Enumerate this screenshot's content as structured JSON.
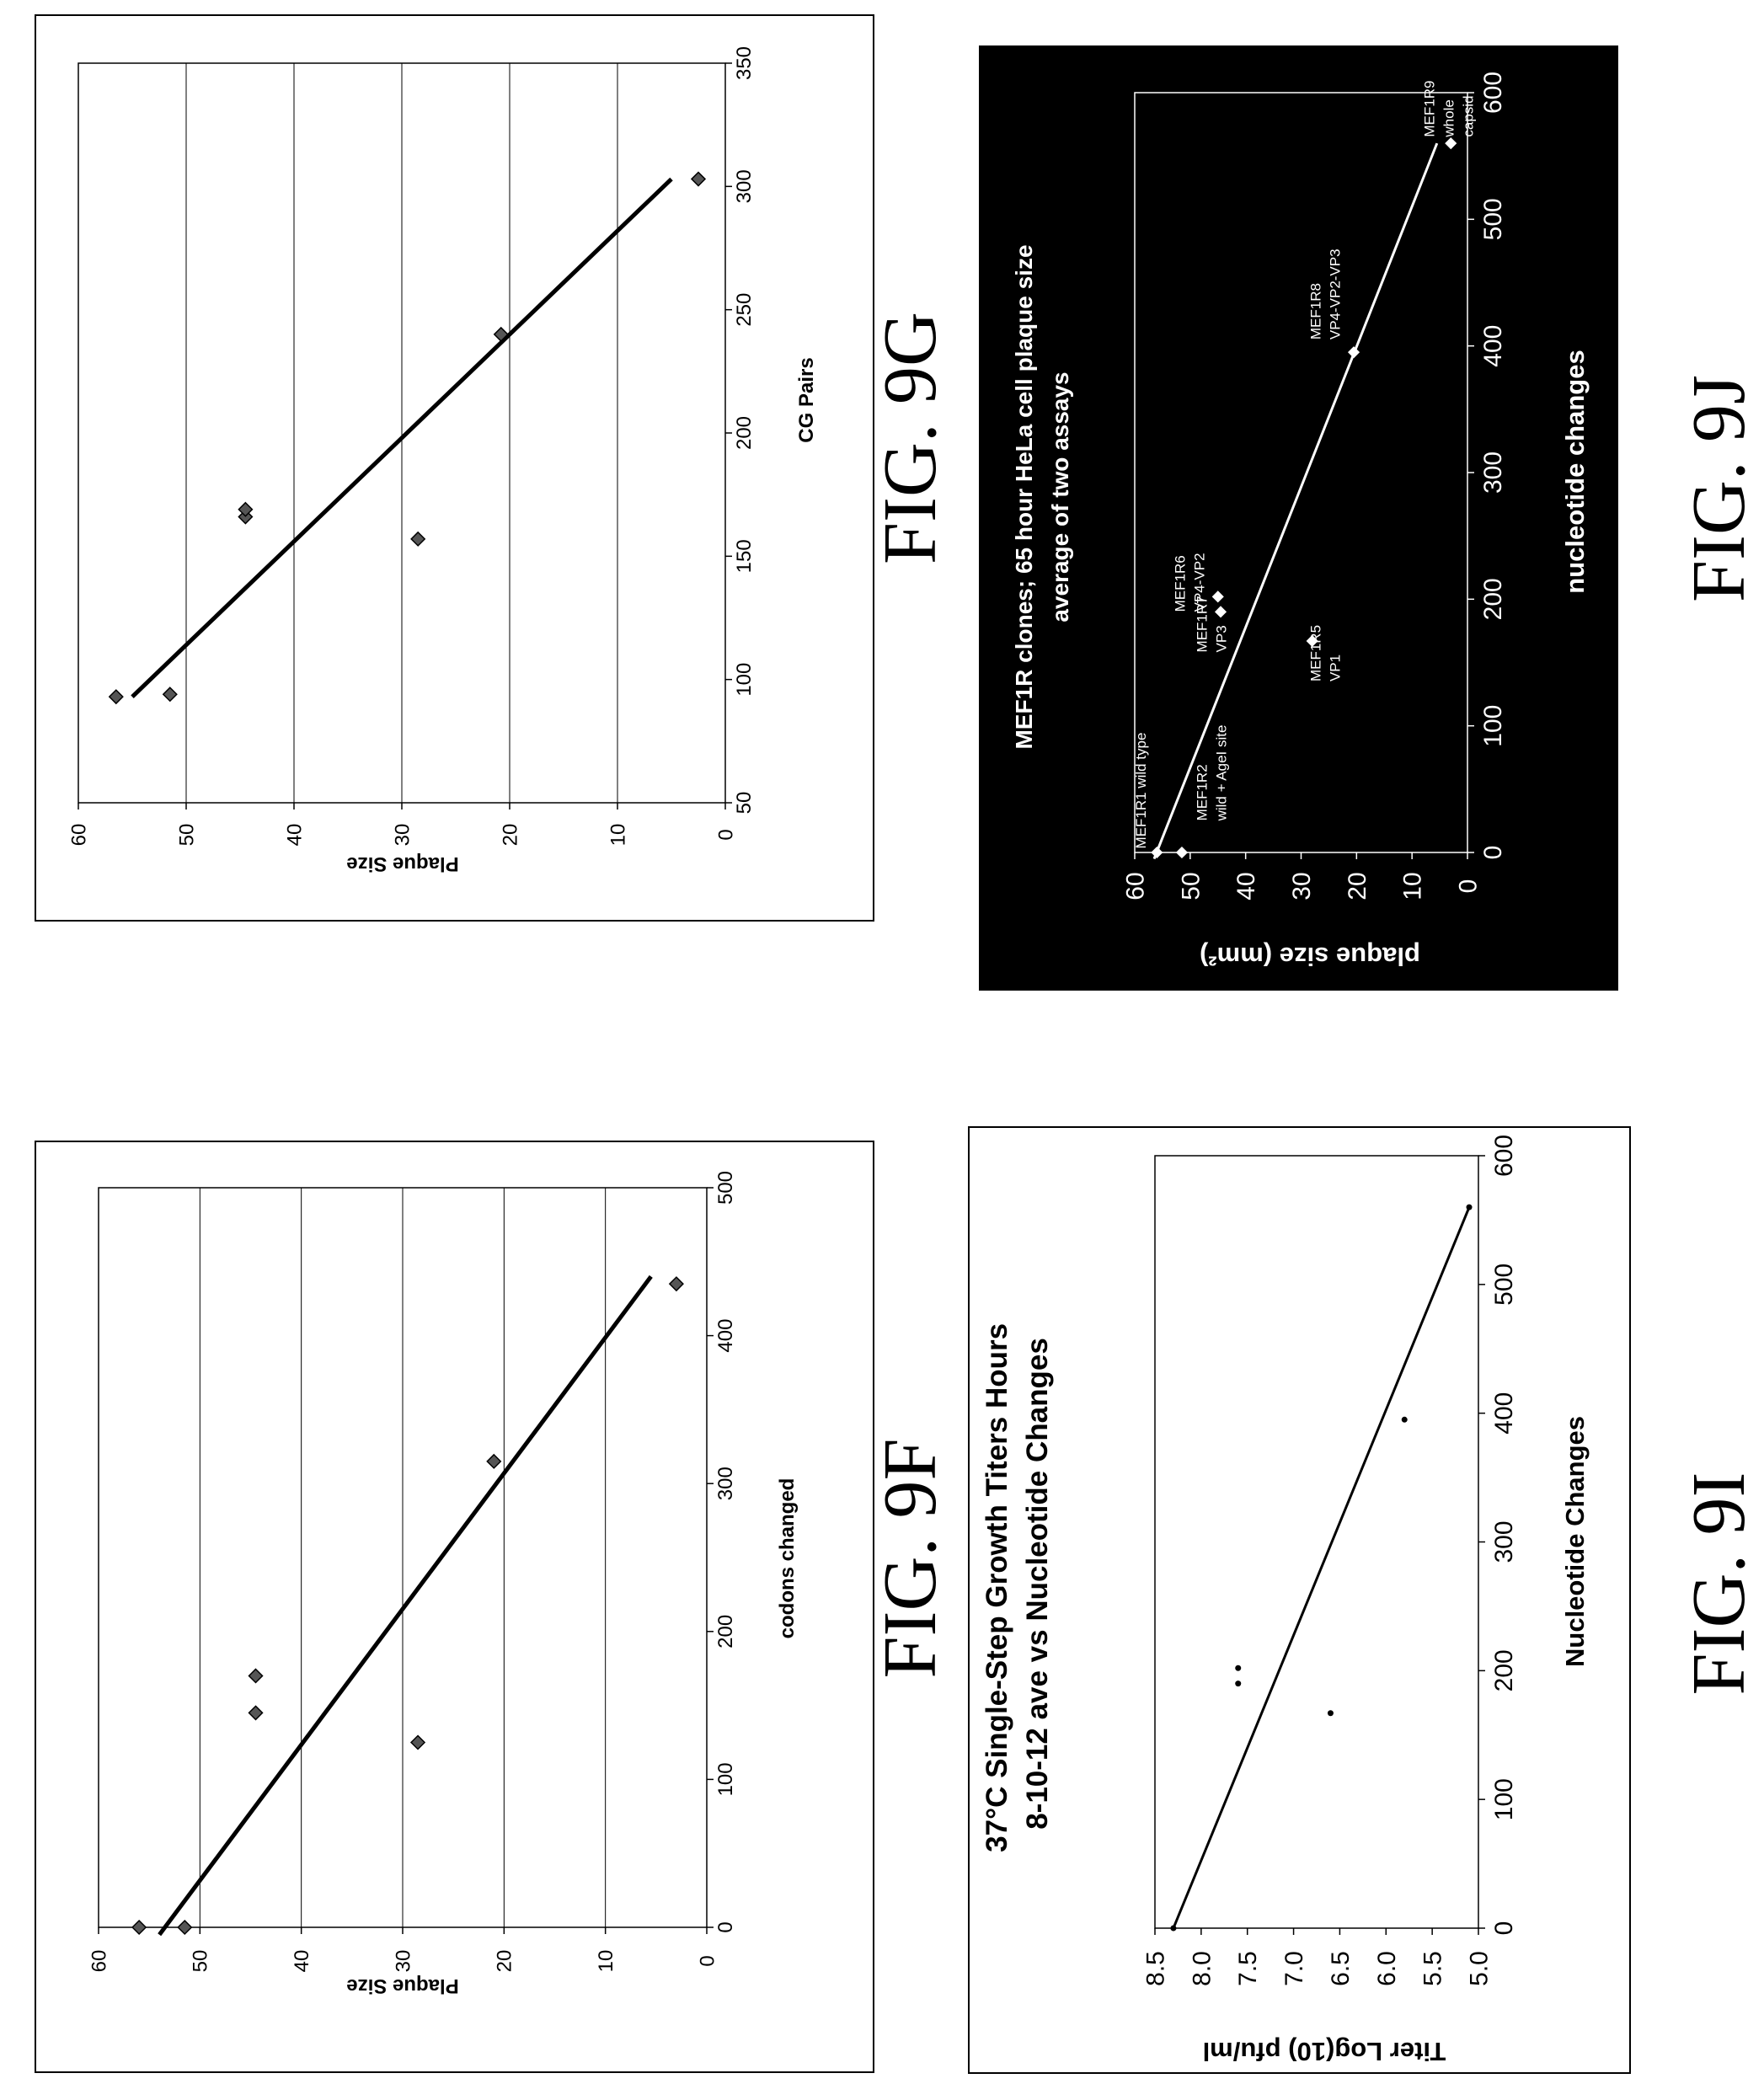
{
  "figures": [
    {
      "label": "FIG. 9F"
    },
    {
      "label": "FIG. 9G"
    },
    {
      "label": "FIG. 9I"
    },
    {
      "label": "FIG. 9J"
    }
  ],
  "chart_data": [
    {
      "id": "fig9f",
      "type": "scatter",
      "title": "",
      "xlabel": "codons changed",
      "ylabel": "Plaque Size",
      "xlim": [
        0,
        500
      ],
      "ylim": [
        0,
        60
      ],
      "xticks": [
        "0",
        "100",
        "200",
        "300",
        "400",
        "500"
      ],
      "yticks": [
        "0",
        "10",
        "20",
        "30",
        "40",
        "50",
        "60"
      ],
      "grid": "horizontal",
      "points": [
        [
          0,
          56
        ],
        [
          0,
          51.5
        ],
        [
          145,
          44.5
        ],
        [
          170,
          44.5
        ],
        [
          125,
          28.5
        ],
        [
          315,
          21
        ],
        [
          435,
          3
        ]
      ],
      "trendline": [
        [
          -5,
          54
        ],
        [
          440,
          5.5
        ]
      ]
    },
    {
      "id": "fig9g",
      "type": "scatter",
      "title": "",
      "xlabel": "CG Pairs",
      "ylabel": "Plaque Size",
      "xlim": [
        50,
        350
      ],
      "ylim": [
        0,
        60
      ],
      "xticks": [
        "50",
        "100",
        "150",
        "200",
        "250",
        "300",
        "350"
      ],
      "yticks": [
        "0",
        "10",
        "20",
        "30",
        "40",
        "50",
        "60"
      ],
      "grid": "horizontal",
      "points": [
        [
          93,
          56.5
        ],
        [
          94,
          51.5
        ],
        [
          166,
          44.5
        ],
        [
          169,
          44.5
        ],
        [
          157,
          28.5
        ],
        [
          240,
          20.8
        ],
        [
          303,
          2.5
        ]
      ],
      "trendline": [
        [
          93,
          55
        ],
        [
          303,
          5
        ]
      ]
    },
    {
      "id": "fig9i",
      "type": "scatter",
      "title": "37°C Single-Step Growth Titers Hours 8-10-12 ave vs Nucleotide Changes",
      "xlabel": "Nucleotide Changes",
      "ylabel": "Titer Log(10) pfu/ml",
      "xlim": [
        0,
        600
      ],
      "ylim": [
        5.0,
        8.5
      ],
      "xticks": [
        "0",
        "100",
        "200",
        "300",
        "400",
        "500",
        "600"
      ],
      "yticks": [
        "5.0",
        "5.5",
        "6.0",
        "6.5",
        "7.0",
        "7.5",
        "8.0",
        "8.5"
      ],
      "grid": "none",
      "points": [
        [
          0,
          8.3
        ],
        [
          190,
          7.6
        ],
        [
          202,
          7.6
        ],
        [
          167,
          6.6
        ],
        [
          395,
          5.8
        ],
        [
          560,
          5.1
        ]
      ],
      "trendline": [
        [
          0,
          8.3
        ],
        [
          560,
          5.1
        ]
      ]
    },
    {
      "id": "fig9j",
      "type": "scatter",
      "title": "MEF1R clones; 65 hour HeLa cell plaque size",
      "subtitle": "average of two assays",
      "xlabel": "nucleotide changes",
      "ylabel": "plaque size (mm²)",
      "xlim": [
        0,
        600
      ],
      "ylim": [
        0,
        60
      ],
      "xticks": [
        "0",
        "100",
        "200",
        "300",
        "400",
        "500",
        "600"
      ],
      "yticks": [
        "0",
        "10",
        "20",
        "30",
        "40",
        "50",
        "60"
      ],
      "grid": "none",
      "background": "#000000",
      "points": [
        [
          0,
          56
        ],
        [
          0,
          51.5
        ],
        [
          190,
          44.5
        ],
        [
          202,
          45
        ],
        [
          167,
          28
        ],
        [
          395,
          20.5
        ],
        [
          560,
          3
        ]
      ],
      "annotations": [
        {
          "text": "MEF1R1 wild type",
          "x": 3,
          "y": 58
        },
        {
          "text": "MEF1R2",
          "x": 25,
          "y": 47
        },
        {
          "text": "wild + AgeI site",
          "x": 25,
          "y": 43.5
        },
        {
          "text": "MEF1R7",
          "x": 158,
          "y": 47
        },
        {
          "text": "VP3",
          "x": 158,
          "y": 43.5
        },
        {
          "text": "MEF1R6",
          "x": 190,
          "y": 51
        },
        {
          "text": "VP4-VP2",
          "x": 190,
          "y": 47.5
        },
        {
          "text": "MEF1R5",
          "x": 135,
          "y": 26.5
        },
        {
          "text": "VP1",
          "x": 135,
          "y": 23
        },
        {
          "text": "MEF1R8",
          "x": 405,
          "y": 26.5
        },
        {
          "text": "VP4-VP2-VP3",
          "x": 405,
          "y": 23
        },
        {
          "text": "MEF1R9",
          "x": 565,
          "y": 6
        },
        {
          "text": "whole",
          "x": 565,
          "y": 2.5
        },
        {
          "text": "capsid",
          "x": 565,
          "y": -1
        }
      ],
      "trendline": [
        [
          -5,
          56.5
        ],
        [
          560,
          5.5
        ]
      ]
    }
  ]
}
